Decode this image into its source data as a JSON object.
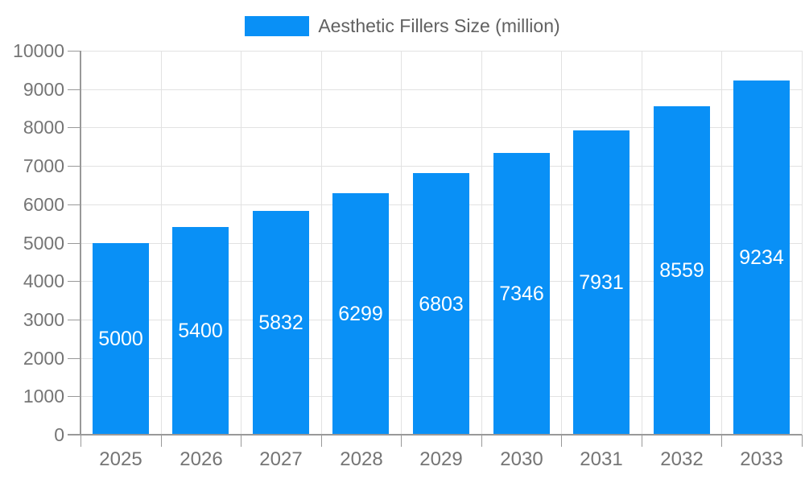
{
  "chart_data": {
    "type": "bar",
    "title": "Aesthetic Fillers Size (million)",
    "categories": [
      "2025",
      "2026",
      "2027",
      "2028",
      "2029",
      "2030",
      "2031",
      "2032",
      "2033"
    ],
    "values": [
      5000,
      5400,
      5832,
      6299,
      6803,
      7346,
      7931,
      8559,
      9234
    ],
    "xlabel": "",
    "ylabel": "",
    "ylim": [
      0,
      10000
    ],
    "ytick_step": 1000,
    "grid": true,
    "value_labels": [
      "5000",
      "5400",
      "5832",
      "6299",
      "6803",
      "7346",
      "7931",
      "8559",
      "9234"
    ],
    "legend": {
      "position": "top",
      "label": "Aesthetic Fillers Size (million)"
    },
    "colors": {
      "bar": "#0990f6",
      "value_label": "#ffffff",
      "axis_line": "#999999",
      "gridline": "#e2e2e2",
      "tick_label": "#757575",
      "legend_label": "#616161",
      "background": "#ffffff"
    }
  }
}
